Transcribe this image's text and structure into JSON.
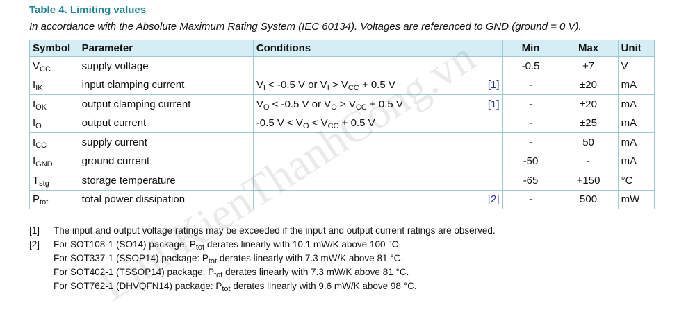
{
  "title": "Table 4. Limiting values",
  "subtitle": "In accordance with the Absolute Maximum Rating System (IEC 60134). Voltages are referenced to GND (ground = 0 V).",
  "watermark": "LinhKienThanhCong.vn",
  "table": {
    "headers": [
      "Symbol",
      "Parameter",
      "Conditions",
      "Min",
      "Max",
      "Unit"
    ],
    "rows": [
      {
        "symbol": [
          "V",
          {
            "sub": "CC"
          }
        ],
        "parameter": "supply voltage",
        "min": "-0.5",
        "max": "+7",
        "unit": "V"
      },
      {
        "symbol": [
          "I",
          {
            "sub": "IK"
          }
        ],
        "parameter": "input clamping current",
        "conditions": [
          "V",
          {
            "sub": "I"
          },
          " < -0.5 V or V",
          {
            "sub": "I"
          },
          " > V",
          {
            "sub": "CC"
          },
          " + 0.5 V"
        ],
        "note": "[1]",
        "min": "-",
        "max": "±20",
        "unit": "mA"
      },
      {
        "symbol": [
          "I",
          {
            "sub": "OK"
          }
        ],
        "parameter": "output clamping current",
        "conditions": [
          "V",
          {
            "sub": "O"
          },
          " < -0.5 V or V",
          {
            "sub": "O"
          },
          " > V",
          {
            "sub": "CC"
          },
          " + 0.5 V"
        ],
        "note": "[1]",
        "min": "-",
        "max": "±20",
        "unit": "mA"
      },
      {
        "symbol": [
          "I",
          {
            "sub": "O"
          }
        ],
        "parameter": "output current",
        "conditions": [
          "-0.5 V < V",
          {
            "sub": "O"
          },
          " < V",
          {
            "sub": "CC"
          },
          " + 0.5 V"
        ],
        "min": "-",
        "max": "±25",
        "unit": "mA"
      },
      {
        "symbol": [
          "I",
          {
            "sub": "CC"
          }
        ],
        "parameter": "supply current",
        "min": "-",
        "max": "50",
        "unit": "mA"
      },
      {
        "symbol": [
          "I",
          {
            "sub": "GND"
          }
        ],
        "parameter": "ground current",
        "min": "-50",
        "max": "-",
        "unit": "mA"
      },
      {
        "symbol": [
          "T",
          {
            "sub": "stg"
          }
        ],
        "parameter": "storage temperature",
        "min": "-65",
        "max": "+150",
        "unit": "°C"
      },
      {
        "symbol": [
          "P",
          {
            "sub": "tot"
          }
        ],
        "parameter": "total power dissipation",
        "note": "[2]",
        "min": "-",
        "max": "500",
        "unit": "mW"
      }
    ]
  },
  "footnotes": [
    {
      "label": "[1]",
      "lines": [
        [
          "The input and output voltage ratings may be exceeded if the input and output current ratings are observed."
        ]
      ]
    },
    {
      "label": "[2]",
      "lines": [
        [
          "For SOT108-1 (SO14) package: P",
          {
            "sub": "tot"
          },
          " derates linearly with 10.1 mW/K above 100 °C."
        ],
        [
          "For SOT337-1 (SSOP14) package: P",
          {
            "sub": "tot"
          },
          " derates linearly with 7.3 mW/K above 81 °C."
        ],
        [
          "For SOT402-1 (TSSOP14) package: P",
          {
            "sub": "tot"
          },
          " derates linearly with 7.3 mW/K above 81 °C."
        ],
        [
          "For SOT762-1 (DHVQFN14) package: P",
          {
            "sub": "tot"
          },
          " derates linearly with 9.6 mW/K above 98 °C."
        ]
      ]
    }
  ]
}
